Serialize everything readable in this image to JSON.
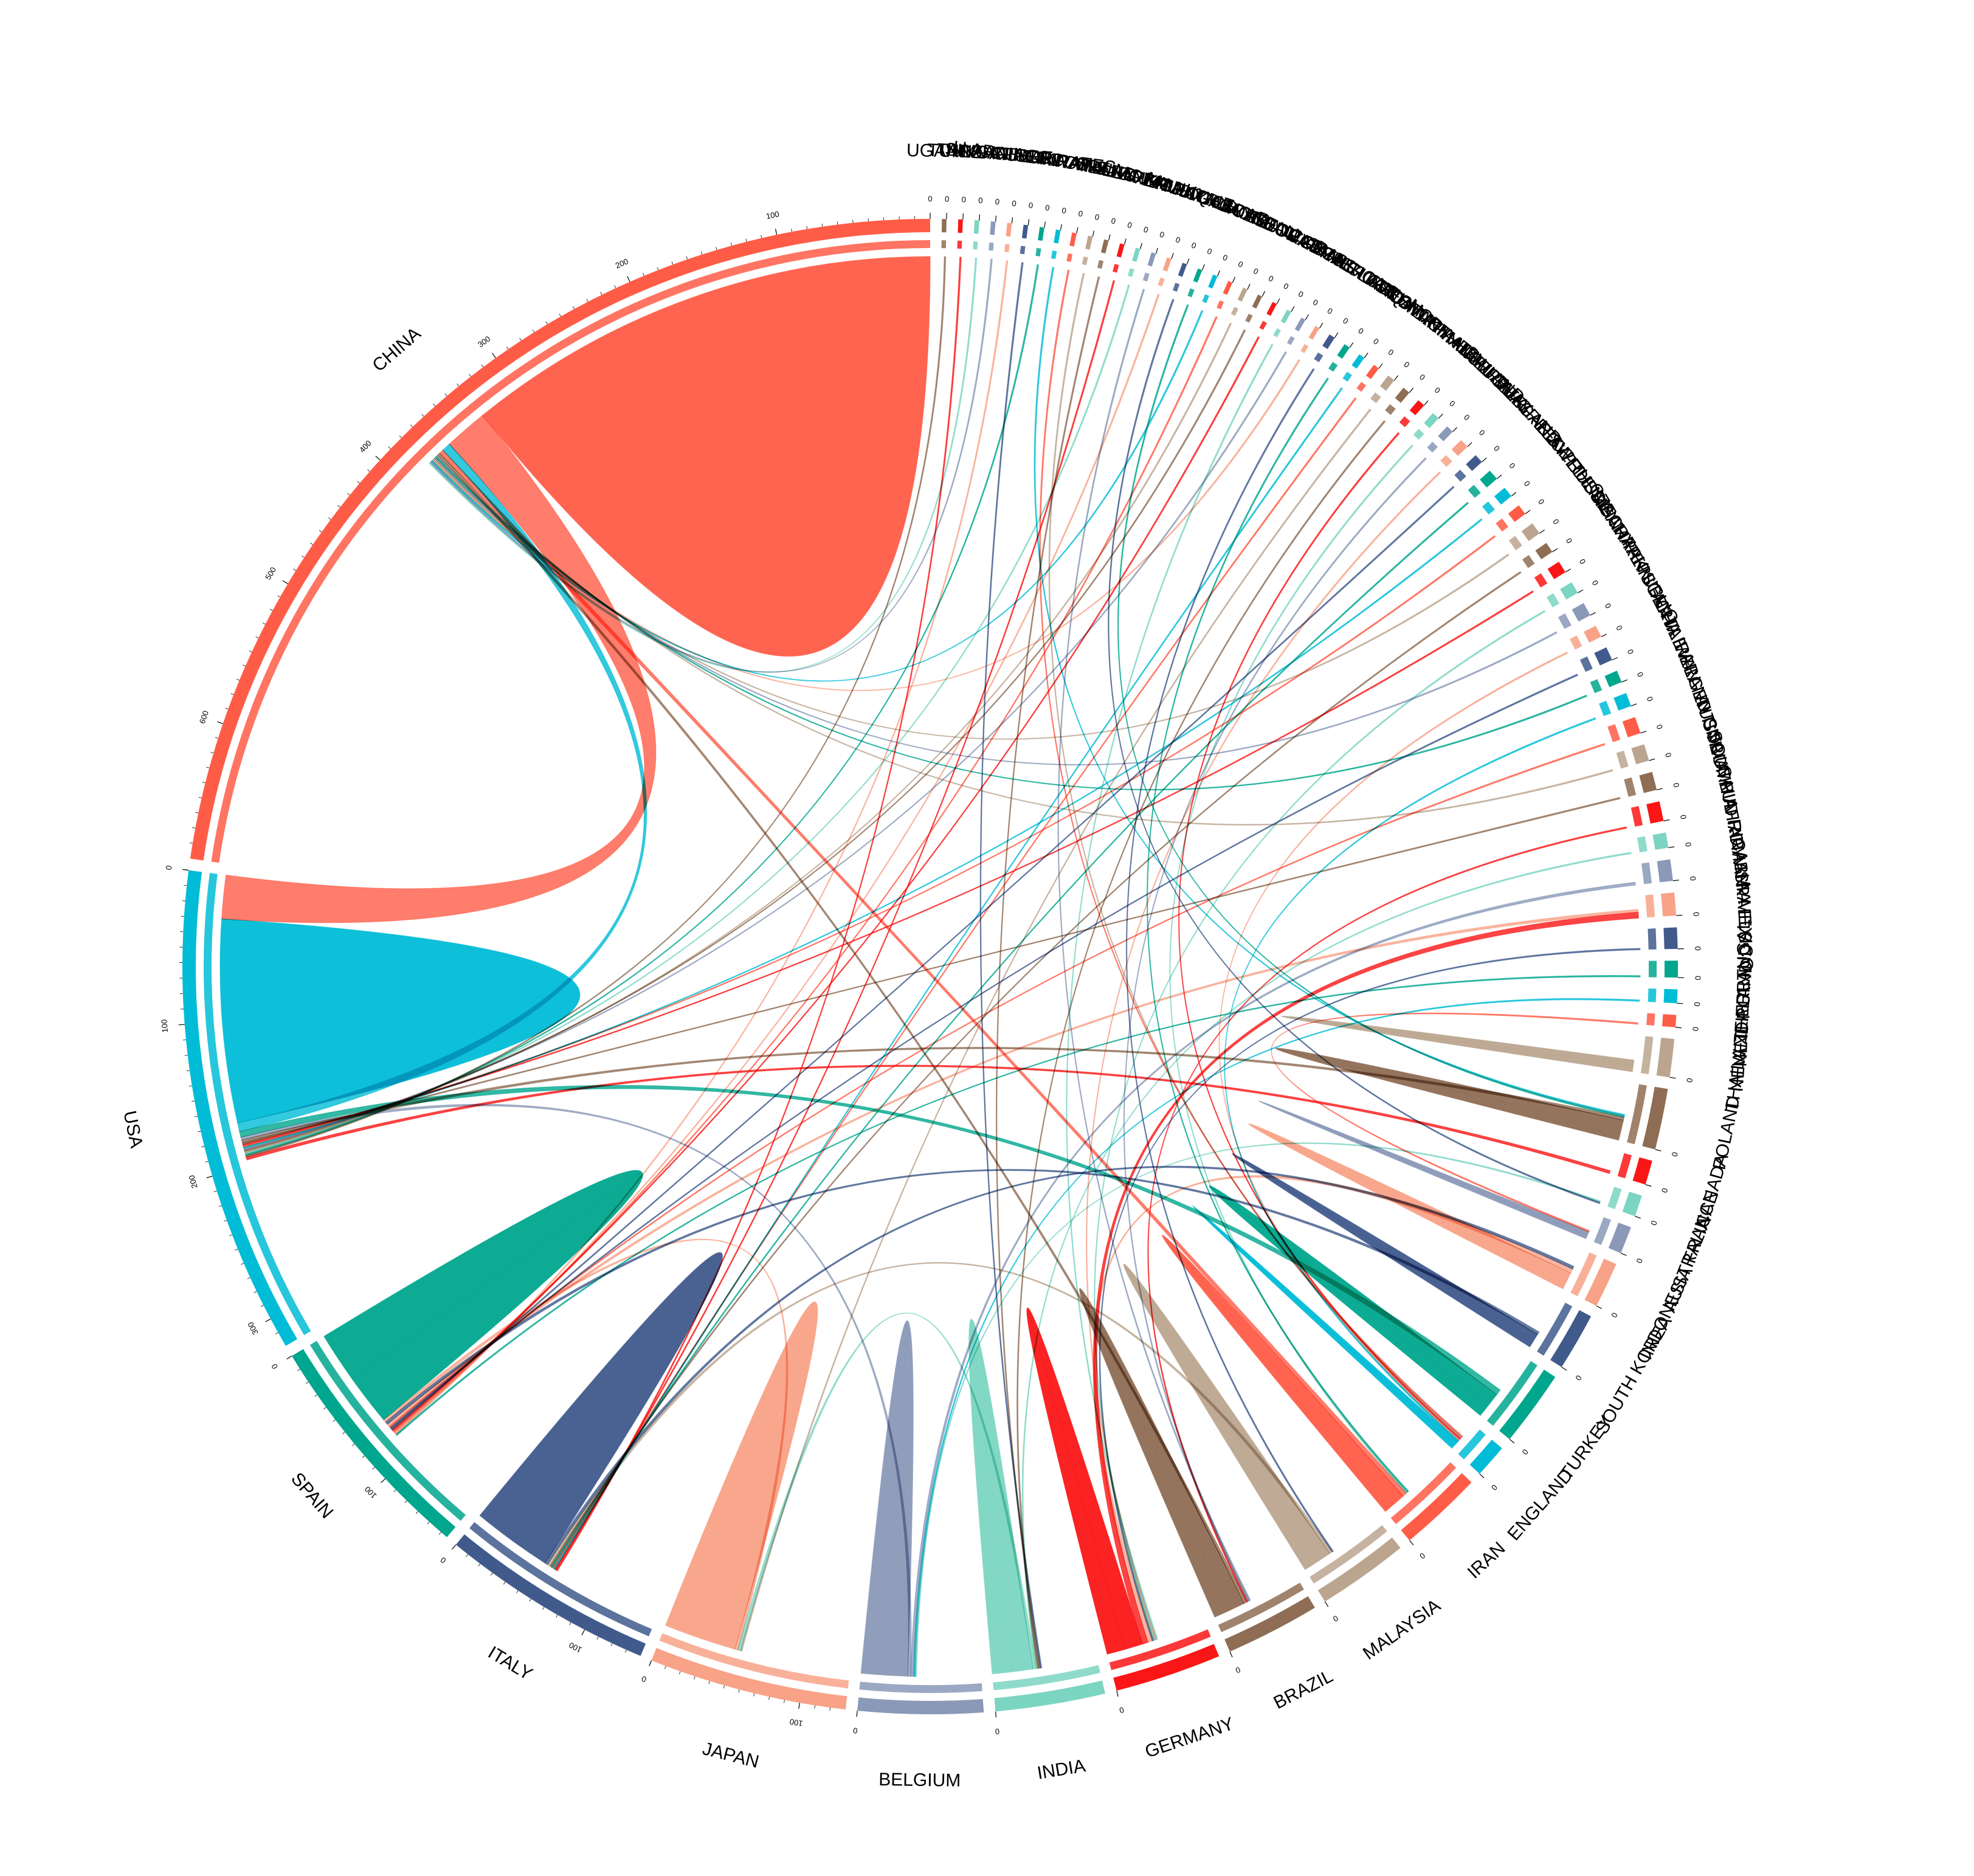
{
  "chart_data": {
    "type": "chord",
    "title": "",
    "palette": [
      "#ff5c47",
      "#00bcd6",
      "#00a68d",
      "#405a8c",
      "#f8a287",
      "#8a99b8",
      "#7bd5c2",
      "#fa1616",
      "#8e6d54",
      "#bba58f"
    ],
    "sectors": [
      {
        "name": "CHINA",
        "total": 690
      },
      {
        "name": "USA",
        "total": 320
      },
      {
        "name": "SPAIN",
        "total": 155
      },
      {
        "name": "ITALY",
        "total": 140
      },
      {
        "name": "JAPAN",
        "total": 130
      },
      {
        "name": "BELGIUM",
        "total": 82
      },
      {
        "name": "INDIA",
        "total": 72
      },
      {
        "name": "GERMANY",
        "total": 70
      },
      {
        "name": "BRAZIL",
        "total": 62
      },
      {
        "name": "MALAYSIA",
        "total": 60
      },
      {
        "name": "IRAN",
        "total": 55
      },
      {
        "name": "ENGLAND",
        "total": 22
      },
      {
        "name": "TURKEY",
        "total": 50
      },
      {
        "name": "SOUTH KOREA",
        "total": 38
      },
      {
        "name": "INDONESIA",
        "total": 30
      },
      {
        "name": "AUSTRALIA",
        "total": 18
      },
      {
        "name": "FRANCE",
        "total": 14
      },
      {
        "name": "CANADA",
        "total": 16
      },
      {
        "name": "POLAND",
        "total": 40
      },
      {
        "name": "THAILAND",
        "total": 25
      },
      {
        "name": "NEW ZEALAND",
        "total": 8
      },
      {
        "name": "NETHERLANDS",
        "total": 9
      },
      {
        "name": "PORTUGAL",
        "total": 11
      },
      {
        "name": "MEXICO",
        "total": 14
      },
      {
        "name": "ISRAEL",
        "total": 15
      },
      {
        "name": "ROMANIA",
        "total": 14
      },
      {
        "name": "SAUDI ARABIA",
        "total": 10
      },
      {
        "name": "SOUTH AFRICA",
        "total": 13
      },
      {
        "name": "COLOMBIA",
        "total": 12
      },
      {
        "name": "AUSTRIA",
        "total": 11
      },
      {
        "name": "ARGENTINA",
        "total": 11
      },
      {
        "name": "IRELAND",
        "total": 9
      },
      {
        "name": "TAIWAN",
        "total": 8
      },
      {
        "name": "CHILE",
        "total": 9
      },
      {
        "name": "NIGERIA",
        "total": 8
      },
      {
        "name": "PAKISTAN",
        "total": 9
      },
      {
        "name": "CZECH REPUBLIC",
        "total": 8
      },
      {
        "name": "DENMARK",
        "total": 8
      },
      {
        "name": "HUNGARY",
        "total": 7
      },
      {
        "name": "RUSSIA",
        "total": 8
      },
      {
        "name": "SWEDEN",
        "total": 7
      },
      {
        "name": "EGYPT",
        "total": 7
      },
      {
        "name": "GREECE",
        "total": 7
      },
      {
        "name": "BULGARIA",
        "total": 6
      },
      {
        "name": "SWITZERLAND",
        "total": 6
      },
      {
        "name": "URUGUAY",
        "total": 5
      },
      {
        "name": "ALGERIA",
        "total": 5
      },
      {
        "name": "NORTH IRELAND",
        "total": 5
      },
      {
        "name": "OMAN",
        "total": 5
      },
      {
        "name": "PHILIPPINES",
        "total": 5
      },
      {
        "name": "SLOVAKIA",
        "total": 4
      },
      {
        "name": "CROATIA",
        "total": 4
      },
      {
        "name": "IRAQ",
        "total": 4
      },
      {
        "name": "BANGLADESH",
        "total": 4
      },
      {
        "name": "CAMEROON",
        "total": 3
      },
      {
        "name": "COSTA RICA",
        "total": 3
      },
      {
        "name": "CYPRUS",
        "total": 3
      },
      {
        "name": "ECUADOR",
        "total": 3
      },
      {
        "name": "GEORGIA",
        "total": 3
      },
      {
        "name": "HONDURAS",
        "total": 3
      },
      {
        "name": "JORDAN",
        "total": 3
      },
      {
        "name": "KYRGYZSTAN",
        "total": 3
      },
      {
        "name": "LITHUANIA",
        "total": 3
      },
      {
        "name": "MADAGASCAR",
        "total": 3
      },
      {
        "name": "MOROCCO",
        "total": 3
      },
      {
        "name": "MOZAMBIQUE",
        "total": 3
      },
      {
        "name": "PERU",
        "total": 3
      },
      {
        "name": "SLOVENIA",
        "total": 3
      },
      {
        "name": "SRI LANKA",
        "total": 3
      },
      {
        "name": "WALES",
        "total": 3
      },
      {
        "name": "SCOTLAND",
        "total": 3
      },
      {
        "name": "UKRAINE",
        "total": 3
      },
      {
        "name": "NORWAY",
        "total": 3
      },
      {
        "name": "U ARAB EMIRATES",
        "total": 3
      },
      {
        "name": "CUBA",
        "total": 3
      },
      {
        "name": "SINGAPORE",
        "total": 3
      },
      {
        "name": "TANZANIA",
        "total": 3
      },
      {
        "name": "TUNISIA",
        "total": 3
      },
      {
        "name": "UGANDA",
        "total": 3
      }
    ],
    "axis_ticks": {
      "CHINA": [
        0,
        100,
        200,
        300,
        400,
        500,
        600
      ],
      "USA": [
        0,
        100,
        200,
        300
      ],
      "SPAIN": [
        0,
        100
      ],
      "ITALY": [
        0,
        100
      ],
      "JAPAN": [
        0,
        100
      ],
      "default": [
        0
      ]
    },
    "links": [
      {
        "from": "CHINA",
        "to": "CHINA",
        "value": 330
      },
      {
        "from": "CHINA",
        "to": "USA",
        "value": 30
      },
      {
        "from": "USA",
        "to": "USA",
        "value": 140
      },
      {
        "from": "SPAIN",
        "to": "SPAIN",
        "value": 70
      },
      {
        "from": "ITALY",
        "to": "ITALY",
        "value": 55
      },
      {
        "from": "JAPAN",
        "to": "JAPAN",
        "value": 50
      },
      {
        "from": "BELGIUM",
        "to": "BELGIUM",
        "value": 32
      },
      {
        "from": "INDIA",
        "to": "INDIA",
        "value": 28
      },
      {
        "from": "GERMANY",
        "to": "GERMANY",
        "value": 25
      },
      {
        "from": "BRAZIL",
        "to": "BRAZIL",
        "value": 22
      },
      {
        "from": "MALAYSIA",
        "to": "MALAYSIA",
        "value": 20
      },
      {
        "from": "IRAN",
        "to": "IRAN",
        "value": 16
      },
      {
        "from": "ENGLAND",
        "to": "ENGLAND",
        "value": 6
      },
      {
        "from": "TURKEY",
        "to": "TURKEY",
        "value": 18
      },
      {
        "from": "SOUTH KOREA",
        "to": "SOUTH KOREA",
        "value": 10
      },
      {
        "from": "INDONESIA",
        "to": "INDONESIA",
        "value": 12
      },
      {
        "from": "AUSTRALIA",
        "to": "AUSTRALIA",
        "value": 5
      },
      {
        "from": "POLAND",
        "to": "POLAND",
        "value": 14
      },
      {
        "from": "THAILAND",
        "to": "THAILAND",
        "value": 8
      },
      {
        "from": "USA",
        "to": "CHINA",
        "value": 6
      },
      {
        "from": "GERMANY",
        "to": "ISRAEL",
        "value": 4
      },
      {
        "from": "TURKEY",
        "to": "USA",
        "value": 4
      },
      {
        "from": "INDONESIA",
        "to": "GERMANY",
        "value": 3
      },
      {
        "from": "ITALY",
        "to": "INDONESIA",
        "value": 2
      },
      {
        "from": "IRAN",
        "to": "CHINA",
        "value": 3
      },
      {
        "from": "BELGIUM",
        "to": "USA",
        "value": 2
      },
      {
        "from": "JAPAN",
        "to": "SPAIN",
        "value": 2
      },
      {
        "from": "MALAYSIA",
        "to": "ITALY",
        "value": 2
      },
      {
        "from": "BRAZIL",
        "to": "CHINA",
        "value": 2
      },
      {
        "from": "SOUTH KOREA",
        "to": "SPAIN",
        "value": 2
      },
      {
        "from": "POLAND",
        "to": "USA",
        "value": 2
      },
      {
        "from": "INDIA",
        "to": "JAPAN",
        "value": 2
      },
      {
        "from": "ROMANIA",
        "to": "BELGIUM",
        "value": 2
      },
      {
        "from": "ISRAEL",
        "to": "SPAIN",
        "value": 2
      },
      {
        "from": "MEXICO",
        "to": "GERMANY",
        "value": 1
      },
      {
        "from": "SAUDI ARABIA",
        "to": "INDIA",
        "value": 1
      },
      {
        "from": "SOUTH AFRICA",
        "to": "BRAZIL",
        "value": 1
      },
      {
        "from": "COLOMBIA",
        "to": "USA",
        "value": 1
      },
      {
        "from": "AUSTRIA",
        "to": "CHINA",
        "value": 1
      },
      {
        "from": "ARGENTINA",
        "to": "SPAIN",
        "value": 1
      },
      {
        "from": "IRELAND",
        "to": "ENGLAND",
        "value": 1
      },
      {
        "from": "TAIWAN",
        "to": "CHINA",
        "value": 1
      },
      {
        "from": "CHILE",
        "to": "SPAIN",
        "value": 1
      },
      {
        "from": "NIGERIA",
        "to": "ENGLAND",
        "value": 1
      },
      {
        "from": "PAKISTAN",
        "to": "CHINA",
        "value": 1
      },
      {
        "from": "CZECH REPUBLIC",
        "to": "GERMANY",
        "value": 1
      },
      {
        "from": "DENMARK",
        "to": "USA",
        "value": 1
      },
      {
        "from": "HUNGARY",
        "to": "ITALY",
        "value": 1
      },
      {
        "from": "RUSSIA",
        "to": "CHINA",
        "value": 1
      },
      {
        "from": "SWEDEN",
        "to": "USA",
        "value": 1
      },
      {
        "from": "EGYPT",
        "to": "USA",
        "value": 1
      },
      {
        "from": "GREECE",
        "to": "ITALY",
        "value": 1
      },
      {
        "from": "BULGARIA",
        "to": "SPAIN",
        "value": 1
      },
      {
        "from": "SWITZERLAND",
        "to": "GERMANY",
        "value": 1
      },
      {
        "from": "URUGUAY",
        "to": "BRAZIL",
        "value": 1
      },
      {
        "from": "ALGERIA",
        "to": "IRAN",
        "value": 1
      },
      {
        "from": "NORTH IRELAND",
        "to": "ENGLAND",
        "value": 1
      },
      {
        "from": "OMAN",
        "to": "INDIA",
        "value": 1
      },
      {
        "from": "PHILIPPINES",
        "to": "JAPAN",
        "value": 1
      },
      {
        "from": "SLOVAKIA",
        "to": "ITALY",
        "value": 1
      },
      {
        "from": "CROATIA",
        "to": "ITALY",
        "value": 1
      },
      {
        "from": "IRAQ",
        "to": "IRAN",
        "value": 1
      },
      {
        "from": "BANGLADESH",
        "to": "MALAYSIA",
        "value": 1
      },
      {
        "from": "CAMEROON",
        "to": "CHINA",
        "value": 1
      },
      {
        "from": "COSTA RICA",
        "to": "USA",
        "value": 1
      },
      {
        "from": "CYPRUS",
        "to": "GERMANY",
        "value": 1
      },
      {
        "from": "ECUADOR",
        "to": "SPAIN",
        "value": 1
      },
      {
        "from": "GEORGIA",
        "to": "USA",
        "value": 1
      },
      {
        "from": "HONDURAS",
        "to": "USA",
        "value": 1
      },
      {
        "from": "JORDAN",
        "to": "SPAIN",
        "value": 1
      },
      {
        "from": "KYRGYZSTAN",
        "to": "CHINA",
        "value": 1
      },
      {
        "from": "LITHUANIA",
        "to": "POLAND",
        "value": 1
      },
      {
        "from": "MADAGASCAR",
        "to": "FRANCE",
        "value": 1
      },
      {
        "from": "MOROCCO",
        "to": "SPAIN",
        "value": 1
      },
      {
        "from": "MOZAMBIQUE",
        "to": "BRAZIL",
        "value": 1
      },
      {
        "from": "PERU",
        "to": "USA",
        "value": 1
      },
      {
        "from": "SLOVENIA",
        "to": "ITALY",
        "value": 1
      },
      {
        "from": "SRI LANKA",
        "to": "INDIA",
        "value": 1
      },
      {
        "from": "WALES",
        "to": "ENGLAND",
        "value": 1
      },
      {
        "from": "SCOTLAND",
        "to": "ENGLAND",
        "value": 1
      },
      {
        "from": "UKRAINE",
        "to": "POLAND",
        "value": 1
      },
      {
        "from": "NORWAY",
        "to": "USA",
        "value": 1
      },
      {
        "from": "U ARAB EMIRATES",
        "to": "INDIA",
        "value": 1
      },
      {
        "from": "CUBA",
        "to": "SPAIN",
        "value": 1
      },
      {
        "from": "SINGAPORE",
        "to": "CHINA",
        "value": 1
      },
      {
        "from": "TANZANIA",
        "to": "CHINA",
        "value": 1
      },
      {
        "from": "TUNISIA",
        "to": "ITALY",
        "value": 1
      },
      {
        "from": "UGANDA",
        "to": "USA",
        "value": 1
      },
      {
        "from": "NEW ZEALAND",
        "to": "AUSTRALIA",
        "value": 1
      },
      {
        "from": "NETHERLANDS",
        "to": "BELGIUM",
        "value": 1
      },
      {
        "from": "PORTUGAL",
        "to": "SPAIN",
        "value": 1
      },
      {
        "from": "CANADA",
        "to": "USA",
        "value": 2
      },
      {
        "from": "FRANCE",
        "to": "BELGIUM",
        "value": 1
      }
    ]
  }
}
